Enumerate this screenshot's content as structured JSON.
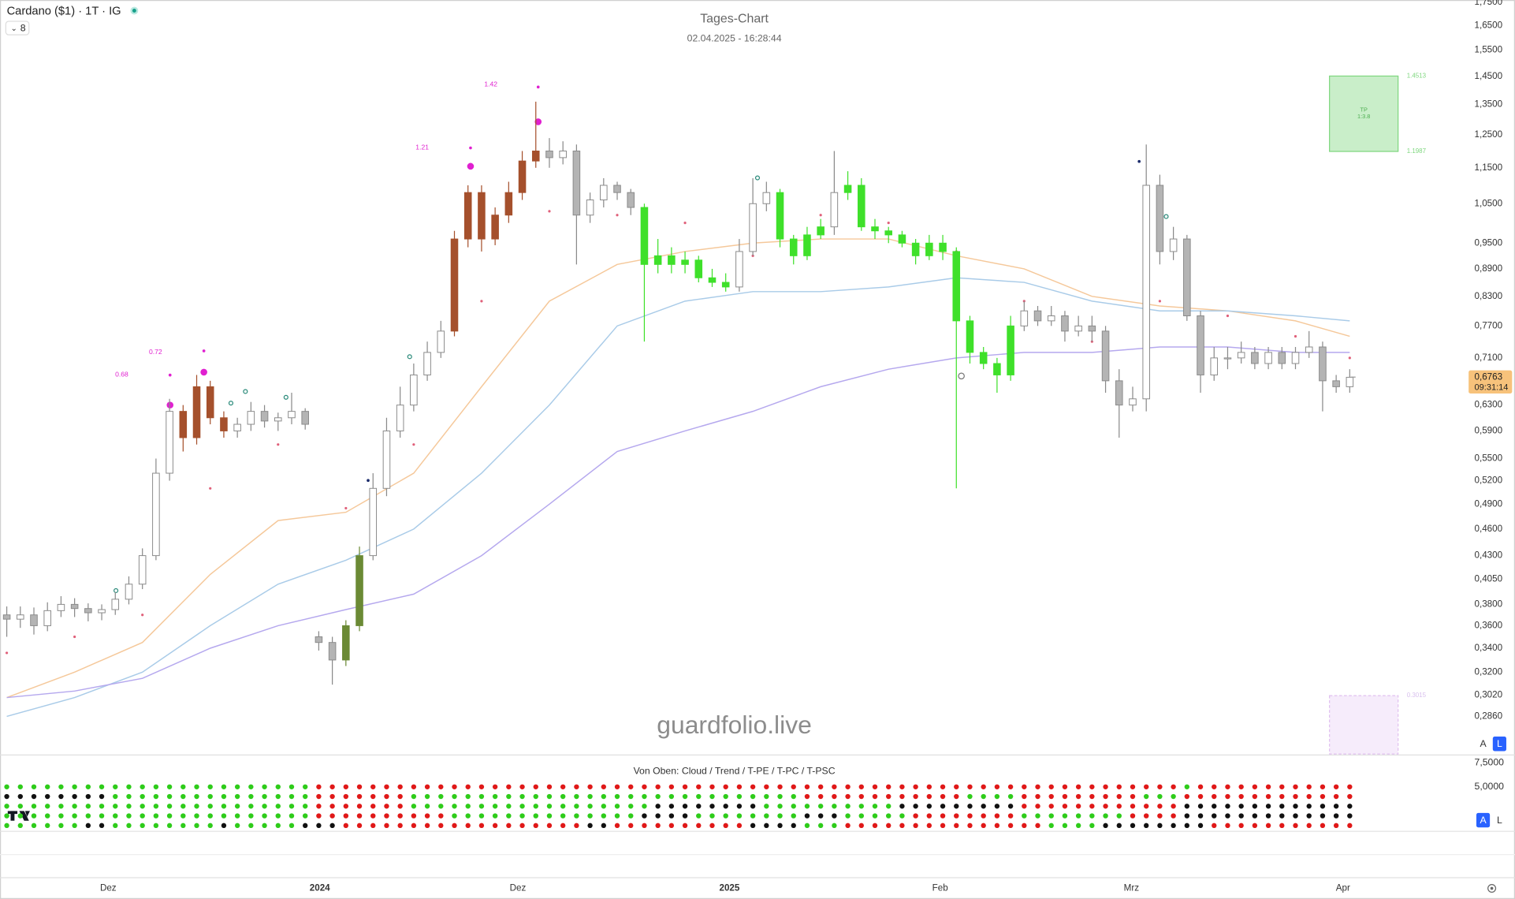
{
  "chart_data": {
    "type": "candlestick",
    "symbol": "Cardano ($1) · 1T · IG",
    "interval_badge": "8",
    "title": "Tages-Chart",
    "subtitle": "02.04.2025 - 16:28:44",
    "watermark": "guardfolio.live",
    "log_scale": true,
    "grid": false,
    "ylim": [
      0.26,
      1.76
    ],
    "yticks": [
      {
        "value": 1.75,
        "label": "1,7500"
      },
      {
        "value": 1.65,
        "label": "1,6500"
      },
      {
        "value": 1.55,
        "label": "1,5500"
      },
      {
        "value": 1.45,
        "label": "1,4500"
      },
      {
        "value": 1.35,
        "label": "1,3500"
      },
      {
        "value": 1.25,
        "label": "1,2500"
      },
      {
        "value": 1.15,
        "label": "1,1500"
      },
      {
        "value": 1.05,
        "label": "1,0500"
      },
      {
        "value": 0.95,
        "label": "0,9500"
      },
      {
        "value": 0.89,
        "label": "0,8900"
      },
      {
        "value": 0.83,
        "label": "0,8300"
      },
      {
        "value": 0.77,
        "label": "0,7700"
      },
      {
        "value": 0.71,
        "label": "0,7100"
      },
      {
        "value": 0.63,
        "label": "0,6300"
      },
      {
        "value": 0.59,
        "label": "0,5900"
      },
      {
        "value": 0.55,
        "label": "0,5500"
      },
      {
        "value": 0.52,
        "label": "0,5200"
      },
      {
        "value": 0.49,
        "label": "0,4900"
      },
      {
        "value": 0.46,
        "label": "0,4600"
      },
      {
        "value": 0.43,
        "label": "0,4300"
      },
      {
        "value": 0.405,
        "label": "0,4050"
      },
      {
        "value": 0.38,
        "label": "0,3800"
      },
      {
        "value": 0.36,
        "label": "0,3600"
      },
      {
        "value": 0.34,
        "label": "0,3400"
      },
      {
        "value": 0.32,
        "label": "0,3200"
      },
      {
        "value": 0.302,
        "label": "0,3020"
      },
      {
        "value": 0.286,
        "label": "0,2860"
      }
    ],
    "x_labels": [
      "Dez",
      "2024",
      "Dez",
      "2025",
      "Feb",
      "Mrz",
      "Apr"
    ],
    "open": [
      0.37,
      0.366,
      0.37,
      0.36,
      0.374,
      0.38,
      0.376,
      0.372,
      0.375,
      0.385,
      0.4,
      0.43,
      0.53,
      0.62,
      0.58,
      0.66,
      0.61,
      0.59,
      0.6,
      0.62,
      0.605,
      0.61,
      0.62,
      0.35,
      0.345,
      0.33,
      0.36,
      0.43,
      0.51,
      0.59,
      0.63,
      0.68,
      0.72,
      0.76,
      0.96,
      1.08,
      0.96,
      1.02,
      1.08,
      1.17,
      1.2,
      1.18,
      1.2,
      1.02,
      1.06,
      1.1,
      1.08,
      1.04,
      0.9,
      0.92,
      0.9,
      0.91,
      0.87,
      0.86,
      0.85,
      0.93,
      1.05,
      1.08,
      0.96,
      0.92,
      0.97,
      0.99,
      1.08,
      1.1,
      0.99,
      0.98,
      0.97,
      0.95,
      0.92,
      0.95,
      0.93,
      0.78,
      0.72,
      0.7,
      0.68,
      0.77,
      0.8,
      0.78,
      0.79,
      0.76,
      0.77,
      0.76,
      0.67,
      0.63,
      0.64,
      1.1,
      0.93,
      0.96,
      0.79,
      0.68,
      0.71,
      0.71,
      0.72,
      0.7,
      0.72,
      0.7,
      0.72,
      0.73,
      0.67,
      0.66
    ],
    "high": [
      0.378,
      0.378,
      0.377,
      0.382,
      0.388,
      0.386,
      0.381,
      0.38,
      0.392,
      0.408,
      0.438,
      0.55,
      0.64,
      0.63,
      0.68,
      0.67,
      0.62,
      0.61,
      0.635,
      0.63,
      0.618,
      0.65,
      0.625,
      0.355,
      0.35,
      0.365,
      0.44,
      0.53,
      0.61,
      0.66,
      0.7,
      0.74,
      0.78,
      0.98,
      1.1,
      1.1,
      1.04,
      1.11,
      1.2,
      1.36,
      1.24,
      1.23,
      1.22,
      1.08,
      1.12,
      1.11,
      1.09,
      1.05,
      0.96,
      0.94,
      0.93,
      0.92,
      0.89,
      0.88,
      0.96,
      1.12,
      1.11,
      1.09,
      0.97,
      0.99,
      1.01,
      1.2,
      1.14,
      1.12,
      1.01,
      0.99,
      0.98,
      0.96,
      0.97,
      0.97,
      0.94,
      0.79,
      0.73,
      0.71,
      0.79,
      0.82,
      0.81,
      0.81,
      0.8,
      0.79,
      0.79,
      0.77,
      0.69,
      0.66,
      1.22,
      1.13,
      0.99,
      0.97,
      0.8,
      0.73,
      0.73,
      0.74,
      0.73,
      0.73,
      0.73,
      0.73,
      0.76,
      0.74,
      0.68,
      0.69
    ],
    "low": [
      0.35,
      0.358,
      0.352,
      0.355,
      0.368,
      0.368,
      0.364,
      0.365,
      0.37,
      0.38,
      0.395,
      0.425,
      0.52,
      0.56,
      0.57,
      0.6,
      0.58,
      0.58,
      0.59,
      0.595,
      0.59,
      0.6,
      0.592,
      0.338,
      0.31,
      0.325,
      0.355,
      0.425,
      0.5,
      0.58,
      0.62,
      0.67,
      0.71,
      0.75,
      0.94,
      0.93,
      0.945,
      1.0,
      1.06,
      1.15,
      1.15,
      1.16,
      0.9,
      1.0,
      1.04,
      1.06,
      1.02,
      0.74,
      0.88,
      0.88,
      0.88,
      0.86,
      0.85,
      0.84,
      0.84,
      0.92,
      1.03,
      0.94,
      0.9,
      0.91,
      0.96,
      0.97,
      1.06,
      0.98,
      0.96,
      0.95,
      0.94,
      0.9,
      0.91,
      0.91,
      0.51,
      0.7,
      0.69,
      0.65,
      0.67,
      0.76,
      0.77,
      0.77,
      0.74,
      0.75,
      0.74,
      0.65,
      0.58,
      0.62,
      0.62,
      0.9,
      0.91,
      0.78,
      0.65,
      0.67,
      0.69,
      0.7,
      0.69,
      0.69,
      0.69,
      0.69,
      0.71,
      0.62,
      0.65,
      0.65
    ],
    "close": [
      0.366,
      0.37,
      0.36,
      0.374,
      0.38,
      0.376,
      0.372,
      0.375,
      0.385,
      0.4,
      0.43,
      0.53,
      0.62,
      0.58,
      0.66,
      0.61,
      0.59,
      0.6,
      0.62,
      0.605,
      0.61,
      0.62,
      0.6,
      0.345,
      0.33,
      0.36,
      0.43,
      0.51,
      0.59,
      0.63,
      0.68,
      0.72,
      0.76,
      0.96,
      1.08,
      0.96,
      1.02,
      1.08,
      1.17,
      1.2,
      1.18,
      1.2,
      1.02,
      1.06,
      1.1,
      1.08,
      1.04,
      0.9,
      0.92,
      0.9,
      0.91,
      0.87,
      0.86,
      0.85,
      0.93,
      1.05,
      1.08,
      0.96,
      0.92,
      0.97,
      0.99,
      1.08,
      1.1,
      0.99,
      0.98,
      0.97,
      0.95,
      0.92,
      0.95,
      0.93,
      0.78,
      0.72,
      0.7,
      0.68,
      0.77,
      0.8,
      0.78,
      0.79,
      0.76,
      0.77,
      0.76,
      0.67,
      0.63,
      0.64,
      1.1,
      0.93,
      0.96,
      0.79,
      0.68,
      0.71,
      0.71,
      0.72,
      0.7,
      0.72,
      0.7,
      0.72,
      0.73,
      0.67,
      0.66,
      0.676
    ],
    "candle_colors": "nnnnnnnnnnnnnBBBBnnnnnnnnOOnnnnnnBBBBBBBnnnnnnnGGGGGGGnnnGGGGnGGGGGGGGGGGGGnnnnnnnnnnnnnnnnnnnnnnnnn",
    "palette": {
      "up": "#ffffff",
      "down": "#b4b4b4",
      "wick": "#8a8a8a",
      "B": "#a5502c",
      "O": "#6b8a35",
      "G": "#3fe02a"
    },
    "line_x": [
      0,
      5,
      10,
      15,
      20,
      25,
      30,
      35,
      40,
      45,
      50,
      55,
      60,
      65,
      70,
      75,
      80,
      85,
      90,
      95,
      99
    ],
    "lines": [
      {
        "color": "#f5c89a",
        "values": [
          0.3,
          0.32,
          0.345,
          0.41,
          0.47,
          0.48,
          0.53,
          0.66,
          0.82,
          0.9,
          0.93,
          0.95,
          0.96,
          0.96,
          0.92,
          0.89,
          0.83,
          0.81,
          0.8,
          0.78,
          0.75
        ]
      },
      {
        "color": "#a9cbe8",
        "values": [
          0.286,
          0.3,
          0.32,
          0.36,
          0.4,
          0.425,
          0.46,
          0.53,
          0.63,
          0.77,
          0.82,
          0.84,
          0.84,
          0.85,
          0.87,
          0.86,
          0.82,
          0.8,
          0.8,
          0.79,
          0.78
        ]
      },
      {
        "color": "#b5a8ee",
        "values": [
          0.3,
          0.305,
          0.315,
          0.34,
          0.36,
          0.375,
          0.39,
          0.43,
          0.49,
          0.56,
          0.59,
          0.62,
          0.66,
          0.69,
          0.71,
          0.72,
          0.72,
          0.73,
          0.73,
          0.72,
          0.72
        ]
      }
    ],
    "trail": {
      "color": "#e0607a",
      "values": [
        0.336,
        0.35,
        0.37,
        0.51,
        0.57,
        0.485,
        0.57,
        0.82,
        1.03,
        1.02,
        1.0,
        0.92,
        1.02,
        1.0,
        0.93,
        0.82,
        0.74,
        0.82,
        0.79,
        0.75,
        0.71
      ]
    },
    "annotations": {
      "color": "#e020d0",
      "values": [
        1.42,
        1.21,
        0.72,
        0.68
      ]
    },
    "last_price": {
      "value": 0.6763,
      "label": "0,6763"
    },
    "countdown": "09:31:14",
    "tp_box": {
      "label": "TP",
      "ratio": "1:3.8",
      "top": 1.4513,
      "bottom": 1.1987
    },
    "lower_target": 0.3015,
    "scale_buttons": [
      "A",
      "L"
    ]
  },
  "indicator": {
    "title": "Von Oben: Cloud / Trend / T-PE / T-PC / T-PSC",
    "axis_labels": [
      "7,5000",
      "5,0000"
    ],
    "palette": {
      "g": "#2ecc1a",
      "r": "#e01818",
      "k": "#111111"
    },
    "rows": [
      "gggggggggggggggggggggggrrrrrrrrrrrrrrrrrrrrrrrrrrrrrrrrrrrrrrrrrrrrrrrrrrrrrrrrrrrrrrrrgrrrrrrrrrrrr",
      "kkkkkkkkgggggggggggggggrrrrrrrgggggggggggggggggggggggggggggrrrrrrrrrrrrggggrrrrrrrrrgggrrrrrrrrrrrrr",
      "gggggggggggggggggggggggrrrrrrrggggggggggggggggggkkkkkkkkggggggggggkkkkkkkkkrrrrrrrrrrrrkkkkkkkkkkkkk",
      "gggggggggggggggggggggggrrrrrrrrrrggggggggggggggkkkkggggggggkkkgggggrrrrrrrrggggggggrrrrkkkkkkkkkkkkk",
      "ggggggkkggggggggkgggggkkkrrrrrrrrrrrrrrrrrrkkrrrrrrrrrrkkkkgggrrrrrrrrrrrrrrrggggkkkkkkkkrrrrrrrrrrr"
    ],
    "scale_buttons": [
      "A",
      "L"
    ]
  }
}
